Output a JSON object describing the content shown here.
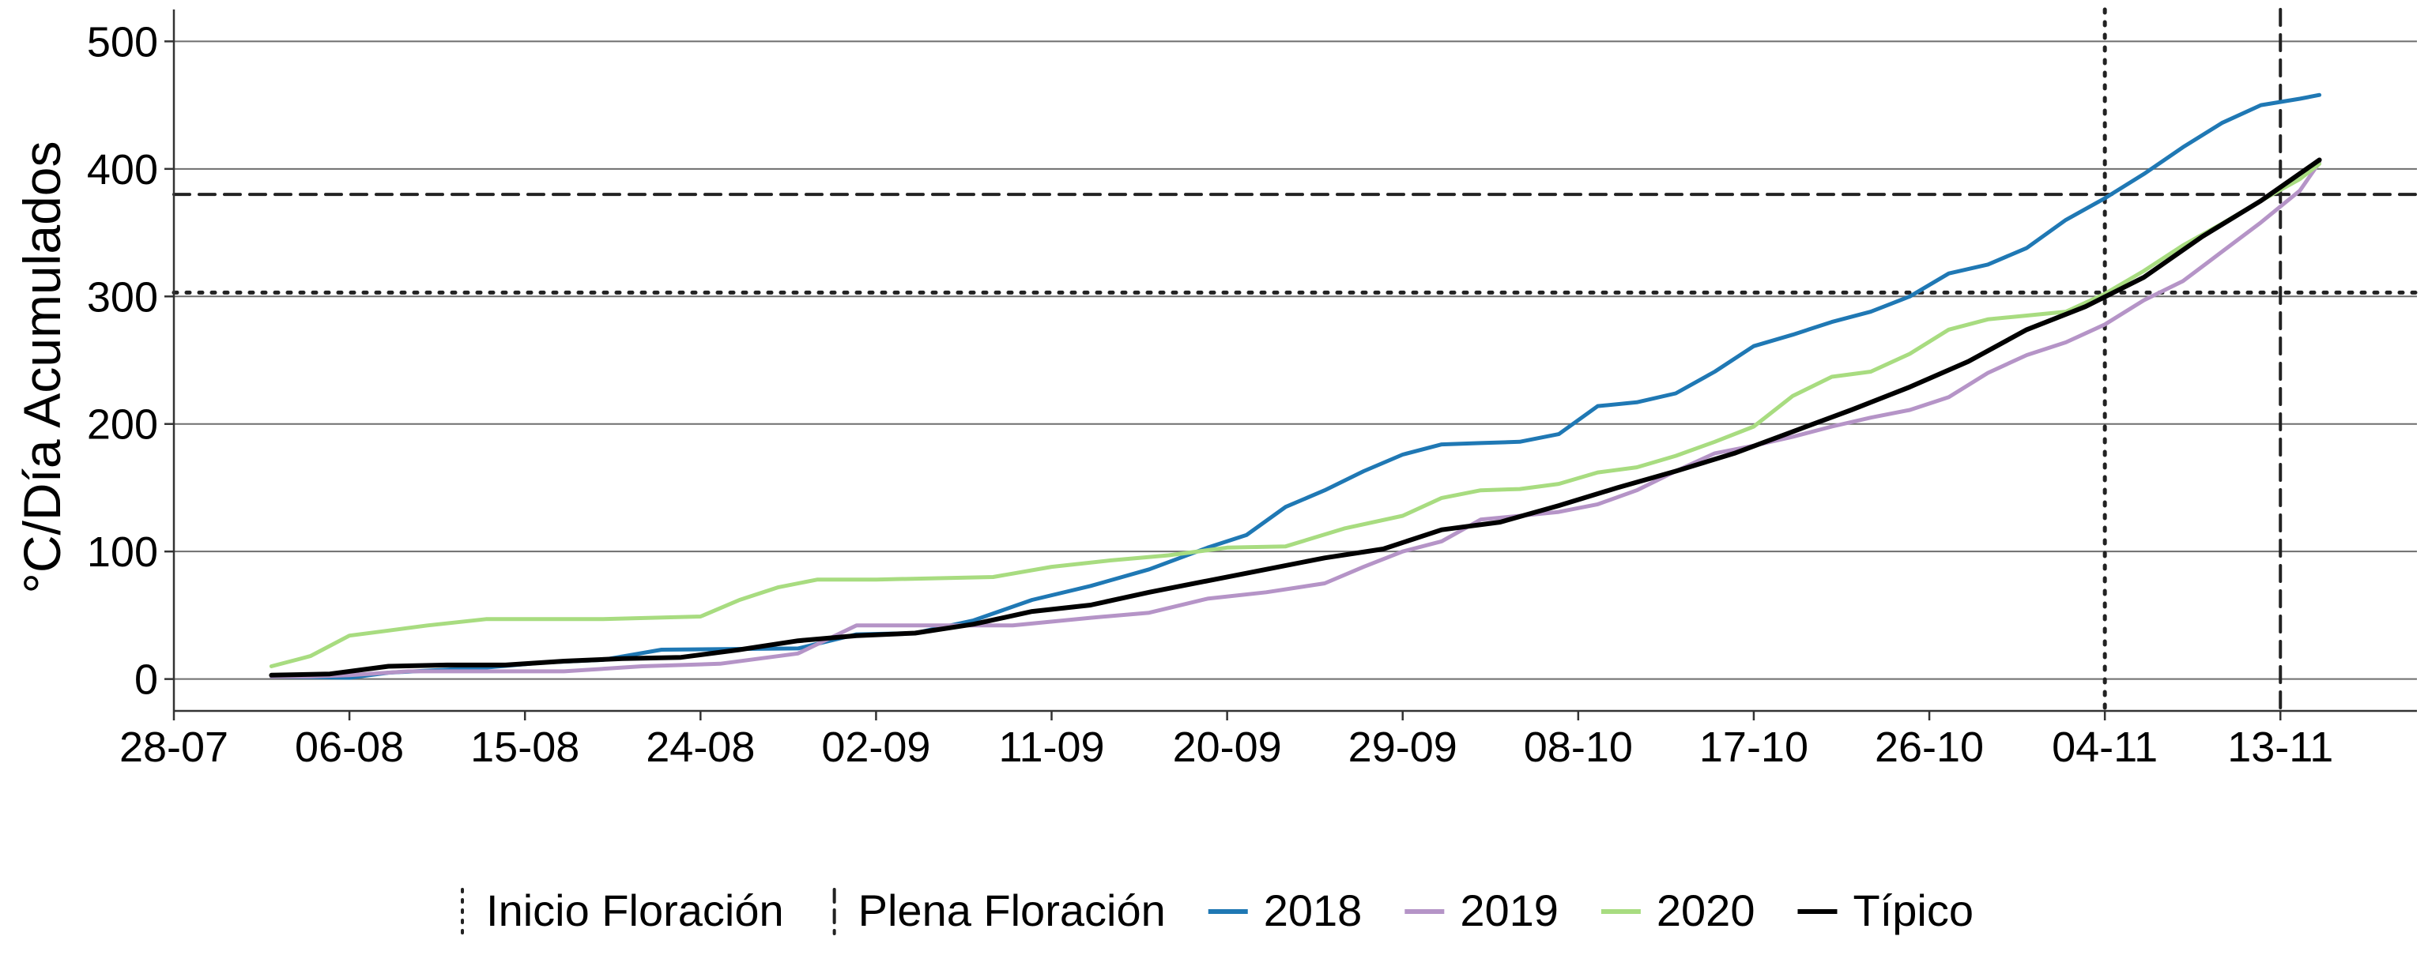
{
  "chart_data": {
    "type": "line",
    "title": "",
    "xlabel": "",
    "ylabel": "°C/Día Acumulados",
    "x_ticks": [
      "28-07",
      "06-08",
      "15-08",
      "24-08",
      "02-09",
      "11-09",
      "20-09",
      "29-09",
      "08-10",
      "17-10",
      "26-10",
      "04-11",
      "13-11"
    ],
    "y_ticks": [
      0,
      100,
      200,
      300,
      400,
      500
    ],
    "xlim": [
      "2021-07-28",
      "2021-11-20"
    ],
    "ylim": [
      -25,
      525
    ],
    "grid": "horizontal major gridlines",
    "legend_position": "bottom",
    "series": [
      {
        "name": "2018",
        "color": "#1f78b4",
        "x": [
          "2021-08-02",
          "2021-08-06",
          "2021-08-08",
          "2021-08-13",
          "2021-08-16",
          "2021-08-19",
          "2021-08-22",
          "2021-08-29",
          "2021-09-01",
          "2021-09-04",
          "2021-09-07",
          "2021-09-10",
          "2021-09-13",
          "2021-09-16",
          "2021-09-19",
          "2021-09-21",
          "2021-09-23",
          "2021-09-25",
          "2021-09-27",
          "2021-09-29",
          "2021-10-01",
          "2021-10-03",
          "2021-10-05",
          "2021-10-07",
          "2021-10-09",
          "2021-10-11",
          "2021-10-13",
          "2021-10-15",
          "2021-10-17",
          "2021-10-19",
          "2021-10-21",
          "2021-10-23",
          "2021-10-25",
          "2021-10-27",
          "2021-10-29",
          "2021-10-31",
          "2021-11-02",
          "2021-11-04",
          "2021-11-06",
          "2021-11-08",
          "2021-11-10",
          "2021-11-12",
          "2021-11-14",
          "2021-11-15"
        ],
        "values": [
          2,
          1,
          5,
          9,
          13,
          15,
          23,
          24,
          35,
          36,
          46,
          62,
          73,
          86,
          103,
          113,
          135,
          148,
          163,
          176,
          184,
          185,
          186,
          192,
          214,
          217,
          224,
          241,
          261,
          270,
          280,
          288,
          300,
          318,
          325,
          338,
          360,
          377,
          396,
          417,
          436,
          450,
          455,
          458
        ]
      },
      {
        "name": "2019",
        "color": "#b594c7",
        "x": [
          "2021-08-02",
          "2021-08-04",
          "2021-08-06",
          "2021-08-09",
          "2021-08-13",
          "2021-08-17",
          "2021-08-21",
          "2021-08-25",
          "2021-08-29",
          "2021-09-01",
          "2021-09-05",
          "2021-09-09",
          "2021-09-13",
          "2021-09-16",
          "2021-09-19",
          "2021-09-22",
          "2021-09-25",
          "2021-09-27",
          "2021-09-29",
          "2021-10-01",
          "2021-10-03",
          "2021-10-05",
          "2021-10-07",
          "2021-10-09",
          "2021-10-11",
          "2021-10-13",
          "2021-10-15",
          "2021-10-17",
          "2021-10-19",
          "2021-10-21",
          "2021-10-23",
          "2021-10-25",
          "2021-10-27",
          "2021-10-29",
          "2021-10-31",
          "2021-11-02",
          "2021-11-04",
          "2021-11-06",
          "2021-11-08",
          "2021-11-10",
          "2021-11-12",
          "2021-11-14",
          "2021-11-15"
        ],
        "values": [
          2,
          2,
          3,
          6,
          6,
          6,
          10,
          12,
          20,
          42,
          42,
          42,
          48,
          52,
          63,
          68,
          75,
          88,
          100,
          108,
          125,
          128,
          131,
          137,
          148,
          163,
          177,
          183,
          190,
          198,
          205,
          211,
          221,
          240,
          254,
          264,
          278,
          297,
          312,
          335,
          358,
          383,
          405
        ]
      },
      {
        "name": "2020",
        "color": "#a8dc80",
        "x": [
          "2021-08-02",
          "2021-08-04",
          "2021-08-06",
          "2021-08-08",
          "2021-08-10",
          "2021-08-13",
          "2021-08-19",
          "2021-08-24",
          "2021-08-26",
          "2021-08-28",
          "2021-08-30",
          "2021-09-02",
          "2021-09-05",
          "2021-09-08",
          "2021-09-11",
          "2021-09-14",
          "2021-09-17",
          "2021-09-20",
          "2021-09-23",
          "2021-09-26",
          "2021-09-29",
          "2021-10-01",
          "2021-10-03",
          "2021-10-05",
          "2021-10-07",
          "2021-10-09",
          "2021-10-11",
          "2021-10-13",
          "2021-10-15",
          "2021-10-17",
          "2021-10-19",
          "2021-10-21",
          "2021-10-23",
          "2021-10-25",
          "2021-10-27",
          "2021-10-29",
          "2021-10-31",
          "2021-11-02",
          "2021-11-04",
          "2021-11-06",
          "2021-11-08",
          "2021-11-10",
          "2021-11-12",
          "2021-11-14",
          "2021-11-15"
        ],
        "values": [
          10,
          18,
          34,
          38,
          42,
          47,
          47,
          49,
          62,
          72,
          78,
          78,
          79,
          80,
          88,
          93,
          97,
          103,
          104,
          118,
          128,
          142,
          148,
          149,
          153,
          162,
          166,
          175,
          186,
          198,
          222,
          237,
          241,
          255,
          274,
          282,
          285,
          288,
          302,
          320,
          340,
          357,
          375,
          392,
          404
        ]
      },
      {
        "name": "Típico",
        "color": "#000000",
        "x": [
          "2021-08-02",
          "2021-08-05",
          "2021-08-08",
          "2021-08-11",
          "2021-08-14",
          "2021-08-17",
          "2021-08-20",
          "2021-08-23",
          "2021-08-26",
          "2021-08-29",
          "2021-09-01",
          "2021-09-04",
          "2021-09-07",
          "2021-09-10",
          "2021-09-13",
          "2021-09-16",
          "2021-09-19",
          "2021-09-22",
          "2021-09-25",
          "2021-09-28",
          "2021-10-01",
          "2021-10-04",
          "2021-10-07",
          "2021-10-10",
          "2021-10-13",
          "2021-10-16",
          "2021-10-19",
          "2021-10-22",
          "2021-10-25",
          "2021-10-28",
          "2021-10-31",
          "2021-11-03",
          "2021-11-06",
          "2021-11-09",
          "2021-11-12",
          "2021-11-15"
        ],
        "values": [
          3,
          4,
          10,
          11,
          11,
          14,
          16,
          17,
          23,
          30,
          34,
          36,
          43,
          53,
          58,
          68,
          77,
          86,
          95,
          102,
          117,
          123,
          136,
          150,
          163,
          177,
          194,
          211,
          229,
          249,
          274,
          292,
          315,
          347,
          375,
          407
        ]
      }
    ],
    "reference_lines": [
      {
        "name": "Inicio Floración",
        "style": "dotted",
        "x": "2021-11-04",
        "y": 303
      },
      {
        "name": "Plena Floración",
        "style": "dashed",
        "x": "2021-11-13",
        "y": 380
      }
    ]
  },
  "legend": {
    "items": [
      {
        "label": "Inicio Floración",
        "kind": "dotted-vline"
      },
      {
        "label": "Plena Floración",
        "kind": "dashed-vline"
      },
      {
        "label": "2018",
        "kind": "line",
        "color": "#1f78b4"
      },
      {
        "label": "2019",
        "kind": "line",
        "color": "#b594c7"
      },
      {
        "label": "2020",
        "kind": "line",
        "color": "#a8dc80"
      },
      {
        "label": "Típico",
        "kind": "line",
        "color": "#000000"
      }
    ]
  }
}
